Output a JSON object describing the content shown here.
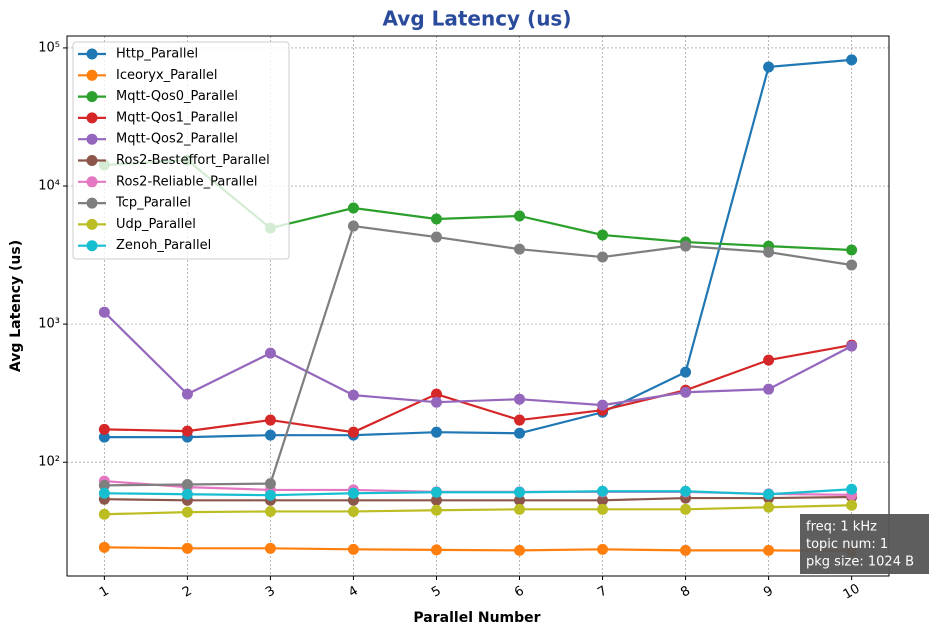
{
  "chart_data": {
    "type": "line",
    "title": "Avg Latency  (us)",
    "x_label": "Parallel Number",
    "y_label": "Avg Latency (us)",
    "x": [
      1,
      2,
      3,
      4,
      5,
      6,
      7,
      8,
      9,
      10
    ],
    "xlim": [
      0.55,
      10.45
    ],
    "xticks": [
      1,
      2,
      3,
      4,
      5,
      6,
      7,
      8,
      9,
      10
    ],
    "ylim": [
      15,
      122000
    ],
    "y_scale": "log",
    "yticks": [
      {
        "value": 100,
        "label": "10²"
      },
      {
        "value": 1000,
        "label": "10³"
      },
      {
        "value": 10000,
        "label": "10⁴"
      },
      {
        "value": 100000,
        "label": "10⁵"
      }
    ],
    "grid": true,
    "legend": "upper left",
    "series": [
      {
        "name": "Http_Parallel",
        "color": "#1f77b4",
        "values": [
          152,
          152,
          157,
          157,
          165,
          162,
          230,
          449,
          72800,
          81900
        ]
      },
      {
        "name": "Iceoryx_Parallel",
        "color": "#ff7f0e",
        "values": [
          24.2,
          23.8,
          23.8,
          23.4,
          23.2,
          23.0,
          23.4,
          23.0,
          23.0,
          22.8
        ]
      },
      {
        "name": "Mqtt-Qos0_Parallel",
        "color": "#2ca02c",
        "values": [
          14200,
          15400,
          4960,
          6930,
          5770,
          6070,
          4420,
          3930,
          3670,
          3440
        ]
      },
      {
        "name": "Mqtt-Qos1_Parallel",
        "color": "#d62728",
        "values": [
          173,
          168,
          202,
          165,
          311,
          202,
          238,
          332,
          549,
          705
        ]
      },
      {
        "name": "Mqtt-Qos2_Parallel",
        "color": "#9467bd",
        "values": [
          1220,
          311,
          617,
          306,
          272,
          286,
          259,
          321,
          338,
          693
        ]
      },
      {
        "name": "Ros2-Besteffort_Parallel",
        "color": "#8c564b",
        "values": [
          54,
          53,
          53,
          53,
          53,
          53,
          53,
          55,
          55,
          56
        ]
      },
      {
        "name": "Ros2-Reliable_Parallel",
        "color": "#e377c2",
        "values": [
          73,
          66,
          63,
          63,
          61,
          61,
          61,
          61,
          59,
          58
        ]
      },
      {
        "name": "Tcp_Parallel",
        "color": "#7f7f7f",
        "values": [
          68,
          69,
          70,
          5130,
          4270,
          3490,
          3060,
          3670,
          3320,
          2680
        ]
      },
      {
        "name": "Udp_Parallel",
        "color": "#bcbd22",
        "values": [
          42,
          43.5,
          44,
          44,
          44.9,
          45.6,
          45.6,
          45.6,
          47.2,
          48.8
        ]
      },
      {
        "name": "Zenoh_Parallel",
        "color": "#17becf",
        "values": [
          59.6,
          58.6,
          57.7,
          59.6,
          60.6,
          60.6,
          61.6,
          61.6,
          58.6,
          63.7
        ]
      }
    ],
    "annotation": [
      "freq: 1 kHz",
      "topic num: 1",
      "pkg size: 1024 B"
    ]
  }
}
